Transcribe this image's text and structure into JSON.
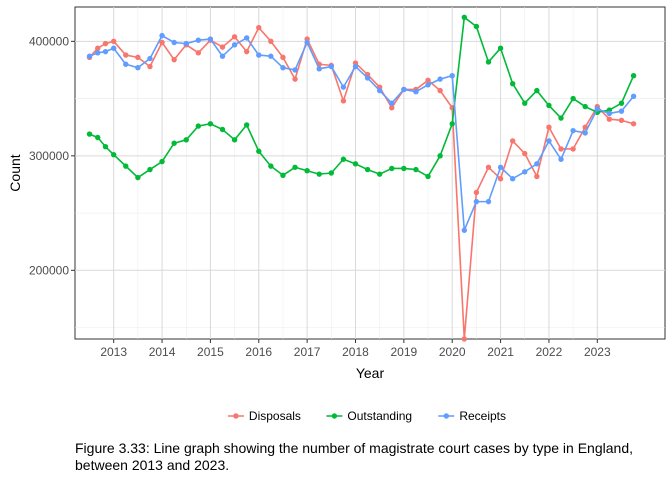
{
  "caption": "Figure 3.33: Line graph showing the number of magistrate court cases by type in England, between 2013 and 2023.",
  "chart_data": {
    "type": "line",
    "xlabel": "Year",
    "ylabel": "Count",
    "xlim": [
      2012.2,
      2024.4
    ],
    "ylim": [
      140000,
      430000
    ],
    "x_ticks": [
      2013,
      2014,
      2015,
      2016,
      2017,
      2018,
      2019,
      2020,
      2021,
      2022,
      2023
    ],
    "y_ticks": [
      200000,
      300000,
      400000
    ],
    "y_tick_labels": [
      "200000",
      "300000",
      "400000"
    ],
    "grid": true,
    "legend_position": "bottom",
    "x": [
      2012.5,
      2012.67,
      2012.83,
      2013.0,
      2013.25,
      2013.5,
      2013.75,
      2014.0,
      2014.25,
      2014.5,
      2014.75,
      2015.0,
      2015.25,
      2015.5,
      2015.75,
      2016.0,
      2016.25,
      2016.5,
      2016.75,
      2017.0,
      2017.25,
      2017.5,
      2017.75,
      2018.0,
      2018.25,
      2018.5,
      2018.75,
      2019.0,
      2019.25,
      2019.5,
      2019.75,
      2020.0,
      2020.25,
      2020.5,
      2020.75,
      2021.0,
      2021.25,
      2021.5,
      2021.75,
      2022.0,
      2022.25,
      2022.5,
      2022.75,
      2023.0,
      2023.25,
      2023.5,
      2023.75
    ],
    "series": [
      {
        "name": "Disposals",
        "color": "#F8766D",
        "values": [
          386000,
          394000,
          398000,
          400000,
          388000,
          386000,
          378000,
          399000,
          384000,
          397000,
          390000,
          401000,
          395000,
          404000,
          391000,
          412000,
          400000,
          386000,
          367000,
          402000,
          380000,
          379000,
          348000,
          381000,
          371000,
          360000,
          342000,
          358000,
          358000,
          366000,
          357000,
          342000,
          140000,
          268000,
          290000,
          280000,
          313000,
          302000,
          282000,
          325000,
          306000,
          306000,
          325000,
          343000,
          332000,
          331000,
          328000
        ]
      },
      {
        "name": "Outstanding",
        "color": "#00BA38",
        "values": [
          319000,
          316000,
          308000,
          301000,
          291000,
          281000,
          288000,
          295000,
          311000,
          314000,
          326000,
          328000,
          323000,
          314000,
          327000,
          304000,
          291000,
          283000,
          290000,
          287000,
          284000,
          285000,
          297000,
          293000,
          288000,
          284000,
          289000,
          289000,
          288000,
          282000,
          300000,
          328000,
          421000,
          413000,
          382000,
          394000,
          363000,
          346000,
          357000,
          344000,
          333000,
          350000,
          343000,
          338000,
          340000,
          346000,
          370000
        ]
      },
      {
        "name": "Receipts",
        "color": "#619CFF",
        "values": [
          387000,
          390000,
          391000,
          394000,
          380000,
          377000,
          385000,
          405000,
          399000,
          398000,
          401000,
          402000,
          387000,
          397000,
          403000,
          388000,
          387000,
          377000,
          375000,
          399000,
          376000,
          378000,
          360000,
          378000,
          368000,
          357000,
          346000,
          358000,
          356000,
          362000,
          367000,
          370000,
          235000,
          260000,
          260000,
          290000,
          280000,
          286000,
          293000,
          313000,
          297000,
          322000,
          320000,
          341000,
          337000,
          339000,
          352000
        ]
      }
    ]
  }
}
